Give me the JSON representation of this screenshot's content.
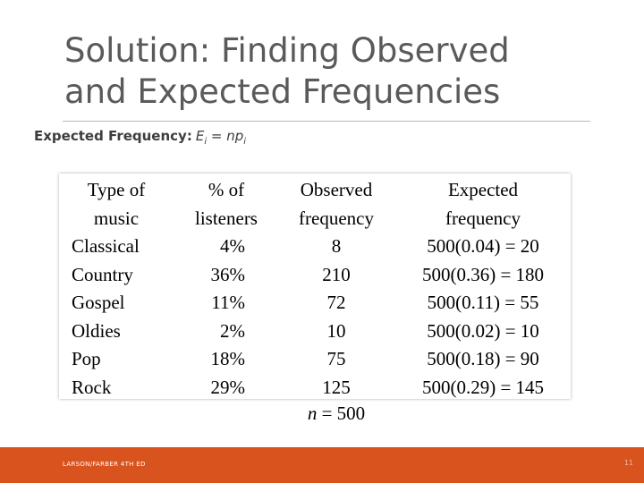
{
  "slide": {
    "title_line1": "Solution: Finding Observed",
    "title_line2": "and Expected Frequencies",
    "subtitle_label": "Expected Frequency:",
    "formula_lhs": "E",
    "formula_lhs_sub": "i",
    "formula_mid": " = np",
    "formula_rhs_sub": "i"
  },
  "table": {
    "headers": {
      "type": [
        "Type of",
        "music"
      ],
      "pct": [
        "% of",
        "listeners"
      ],
      "observed": [
        "Observed",
        "frequency"
      ],
      "expected": [
        "Expected",
        "frequency"
      ]
    },
    "rows": [
      {
        "type": "Classical",
        "pct": "4%",
        "observed": "8",
        "expected": "500(0.04) = 20"
      },
      {
        "type": "Country",
        "pct": "36%",
        "observed": "210",
        "expected": "500(0.36) = 180"
      },
      {
        "type": "Gospel",
        "pct": "11%",
        "observed": "72",
        "expected": "500(0.11) = 55"
      },
      {
        "type": "Oldies",
        "pct": "2%",
        "observed": "10",
        "expected": "500(0.02) = 10"
      },
      {
        "type": "Pop",
        "pct": "18%",
        "observed": "75",
        "expected": "500(0.18) = 90"
      },
      {
        "type": "Rock",
        "pct": "29%",
        "observed": "125",
        "expected": "500(0.29) = 145"
      }
    ],
    "total_symbol": "n",
    "total_rest": " = 500"
  },
  "footer": {
    "text": "LARSON/FARBER 4TH ED",
    "page": "11"
  },
  "colors": {
    "footer_bar": "#d9531e",
    "title": "#5a5a5a"
  }
}
